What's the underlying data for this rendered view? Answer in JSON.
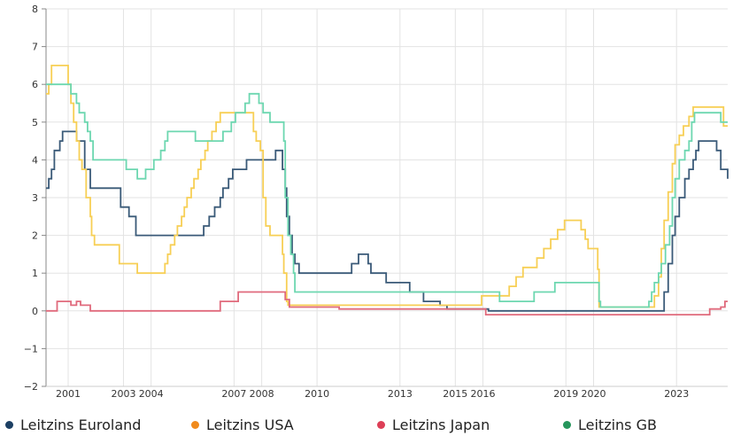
{
  "chart_data": {
    "type": "line",
    "step": true,
    "title": "",
    "xlabel": "",
    "ylabel": "",
    "xlim": [
      2000.2,
      2024.85
    ],
    "ylim": [
      -2,
      8
    ],
    "yticks": [
      -2,
      -1,
      0,
      1,
      2,
      3,
      4,
      5,
      6,
      7,
      8
    ],
    "ytick_labels": [
      "−2",
      "−1",
      "0",
      "1",
      "2",
      "3",
      "4",
      "5",
      "6",
      "7",
      "8"
    ],
    "xticks": [
      2001,
      2003,
      2004,
      2007,
      2008,
      2010,
      2013,
      2015,
      2016,
      2019,
      2020,
      2023
    ],
    "xtick_labels": [
      "2001",
      "2003",
      "2004",
      "2007",
      "2008",
      "2010",
      "2013",
      "2015",
      "2016",
      "2019",
      "2020",
      "2023"
    ],
    "grid": true,
    "legend_position": "bottom",
    "series": [
      {
        "name": "Leitzins Euroland",
        "color": "#3a5a78",
        "dot_color": "#1c3f63",
        "points": [
          [
            2000.2,
            3.25
          ],
          [
            2000.3,
            3.5
          ],
          [
            2000.4,
            3.75
          ],
          [
            2000.5,
            4.25
          ],
          [
            2000.7,
            4.5
          ],
          [
            2000.8,
            4.75
          ],
          [
            2001.3,
            4.5
          ],
          [
            2001.6,
            3.75
          ],
          [
            2001.8,
            3.25
          ],
          [
            2002.9,
            2.75
          ],
          [
            2003.2,
            2.5
          ],
          [
            2003.45,
            2.0
          ],
          [
            2005.9,
            2.25
          ],
          [
            2006.1,
            2.5
          ],
          [
            2006.3,
            2.75
          ],
          [
            2006.5,
            3.0
          ],
          [
            2006.6,
            3.25
          ],
          [
            2006.8,
            3.5
          ],
          [
            2006.95,
            3.75
          ],
          [
            2007.45,
            4.0
          ],
          [
            2008.5,
            4.25
          ],
          [
            2008.75,
            3.75
          ],
          [
            2008.85,
            3.25
          ],
          [
            2008.9,
            2.5
          ],
          [
            2009.0,
            2.0
          ],
          [
            2009.1,
            1.5
          ],
          [
            2009.2,
            1.25
          ],
          [
            2009.35,
            1.0
          ],
          [
            2011.25,
            1.25
          ],
          [
            2011.5,
            1.5
          ],
          [
            2011.85,
            1.25
          ],
          [
            2011.95,
            1.0
          ],
          [
            2012.5,
            0.75
          ],
          [
            2013.35,
            0.5
          ],
          [
            2013.85,
            0.25
          ],
          [
            2014.45,
            0.15
          ],
          [
            2014.7,
            0.05
          ],
          [
            2016.2,
            0.0
          ],
          [
            2022.55,
            0.5
          ],
          [
            2022.7,
            1.25
          ],
          [
            2022.85,
            2.0
          ],
          [
            2022.95,
            2.5
          ],
          [
            2023.1,
            3.0
          ],
          [
            2023.3,
            3.5
          ],
          [
            2023.45,
            3.75
          ],
          [
            2023.6,
            4.0
          ],
          [
            2023.7,
            4.25
          ],
          [
            2023.8,
            4.5
          ],
          [
            2024.45,
            4.25
          ],
          [
            2024.6,
            3.75
          ],
          [
            2024.85,
            3.5
          ]
        ]
      },
      {
        "name": "Leitzins USA",
        "color": "#f7cf55",
        "dot_color": "#f08a1c",
        "points": [
          [
            2000.2,
            5.75
          ],
          [
            2000.3,
            6.0
          ],
          [
            2000.4,
            6.5
          ],
          [
            2001.0,
            6.0
          ],
          [
            2001.1,
            5.5
          ],
          [
            2001.2,
            5.0
          ],
          [
            2001.3,
            4.5
          ],
          [
            2001.4,
            4.0
          ],
          [
            2001.5,
            3.75
          ],
          [
            2001.65,
            3.0
          ],
          [
            2001.8,
            2.5
          ],
          [
            2001.85,
            2.0
          ],
          [
            2001.95,
            1.75
          ],
          [
            2002.85,
            1.25
          ],
          [
            2003.5,
            1.0
          ],
          [
            2004.5,
            1.25
          ],
          [
            2004.6,
            1.5
          ],
          [
            2004.7,
            1.75
          ],
          [
            2004.85,
            2.0
          ],
          [
            2004.95,
            2.25
          ],
          [
            2005.1,
            2.5
          ],
          [
            2005.2,
            2.75
          ],
          [
            2005.3,
            3.0
          ],
          [
            2005.45,
            3.25
          ],
          [
            2005.55,
            3.5
          ],
          [
            2005.7,
            3.75
          ],
          [
            2005.8,
            4.0
          ],
          [
            2005.95,
            4.25
          ],
          [
            2006.05,
            4.5
          ],
          [
            2006.2,
            4.75
          ],
          [
            2006.35,
            5.0
          ],
          [
            2006.5,
            5.25
          ],
          [
            2007.7,
            4.75
          ],
          [
            2007.8,
            4.5
          ],
          [
            2007.95,
            4.25
          ],
          [
            2008.05,
            3.0
          ],
          [
            2008.15,
            2.25
          ],
          [
            2008.3,
            2.0
          ],
          [
            2008.75,
            1.5
          ],
          [
            2008.8,
            1.0
          ],
          [
            2008.9,
            0.25
          ],
          [
            2008.95,
            0.15
          ],
          [
            2015.95,
            0.4
          ],
          [
            2016.95,
            0.65
          ],
          [
            2017.2,
            0.9
          ],
          [
            2017.45,
            1.15
          ],
          [
            2017.95,
            1.4
          ],
          [
            2018.2,
            1.65
          ],
          [
            2018.45,
            1.9
          ],
          [
            2018.7,
            2.15
          ],
          [
            2018.95,
            2.4
          ],
          [
            2019.55,
            2.15
          ],
          [
            2019.7,
            1.9
          ],
          [
            2019.8,
            1.65
          ],
          [
            2020.15,
            1.1
          ],
          [
            2020.2,
            0.1
          ],
          [
            2022.2,
            0.4
          ],
          [
            2022.35,
            0.9
          ],
          [
            2022.45,
            1.65
          ],
          [
            2022.55,
            2.4
          ],
          [
            2022.7,
            3.15
          ],
          [
            2022.85,
            3.9
          ],
          [
            2022.95,
            4.4
          ],
          [
            2023.1,
            4.65
          ],
          [
            2023.25,
            4.9
          ],
          [
            2023.45,
            5.15
          ],
          [
            2023.6,
            5.4
          ],
          [
            2024.7,
            4.9
          ]
        ]
      },
      {
        "name": "Leitzins Japan",
        "color": "#e06a7c",
        "dot_color": "#dd3f57",
        "points": [
          [
            2000.2,
            0.0
          ],
          [
            2000.6,
            0.25
          ],
          [
            2001.1,
            0.15
          ],
          [
            2001.3,
            0.25
          ],
          [
            2001.45,
            0.15
          ],
          [
            2001.8,
            0.0
          ],
          [
            2006.5,
            0.25
          ],
          [
            2007.15,
            0.5
          ],
          [
            2008.85,
            0.3
          ],
          [
            2009.0,
            0.1
          ],
          [
            2010.8,
            0.05
          ],
          [
            2016.1,
            -0.1
          ],
          [
            2024.2,
            0.05
          ],
          [
            2024.6,
            0.1
          ],
          [
            2024.75,
            0.25
          ]
        ]
      },
      {
        "name": "Leitzins GB",
        "color": "#6dd7b0",
        "dot_color": "#26965c",
        "points": [
          [
            2000.2,
            6.0
          ],
          [
            2001.1,
            5.75
          ],
          [
            2001.3,
            5.5
          ],
          [
            2001.4,
            5.25
          ],
          [
            2001.6,
            5.0
          ],
          [
            2001.7,
            4.75
          ],
          [
            2001.8,
            4.5
          ],
          [
            2001.9,
            4.0
          ],
          [
            2003.1,
            3.75
          ],
          [
            2003.5,
            3.5
          ],
          [
            2003.8,
            3.75
          ],
          [
            2004.1,
            4.0
          ],
          [
            2004.35,
            4.25
          ],
          [
            2004.5,
            4.5
          ],
          [
            2004.6,
            4.75
          ],
          [
            2005.6,
            4.5
          ],
          [
            2006.6,
            4.75
          ],
          [
            2006.9,
            5.0
          ],
          [
            2007.05,
            5.25
          ],
          [
            2007.4,
            5.5
          ],
          [
            2007.55,
            5.75
          ],
          [
            2007.9,
            5.5
          ],
          [
            2008.05,
            5.25
          ],
          [
            2008.3,
            5.0
          ],
          [
            2008.8,
            4.5
          ],
          [
            2008.85,
            3.0
          ],
          [
            2008.95,
            2.0
          ],
          [
            2009.05,
            1.5
          ],
          [
            2009.15,
            1.0
          ],
          [
            2009.2,
            0.5
          ],
          [
            2016.6,
            0.25
          ],
          [
            2017.85,
            0.5
          ],
          [
            2018.6,
            0.75
          ],
          [
            2020.2,
            0.25
          ],
          [
            2020.25,
            0.1
          ],
          [
            2022.0,
            0.25
          ],
          [
            2022.1,
            0.5
          ],
          [
            2022.2,
            0.75
          ],
          [
            2022.35,
            1.0
          ],
          [
            2022.45,
            1.25
          ],
          [
            2022.6,
            1.75
          ],
          [
            2022.75,
            2.25
          ],
          [
            2022.85,
            3.0
          ],
          [
            2022.95,
            3.5
          ],
          [
            2023.1,
            4.0
          ],
          [
            2023.3,
            4.25
          ],
          [
            2023.45,
            4.5
          ],
          [
            2023.55,
            5.0
          ],
          [
            2023.65,
            5.25
          ],
          [
            2024.6,
            5.0
          ]
        ]
      }
    ]
  }
}
